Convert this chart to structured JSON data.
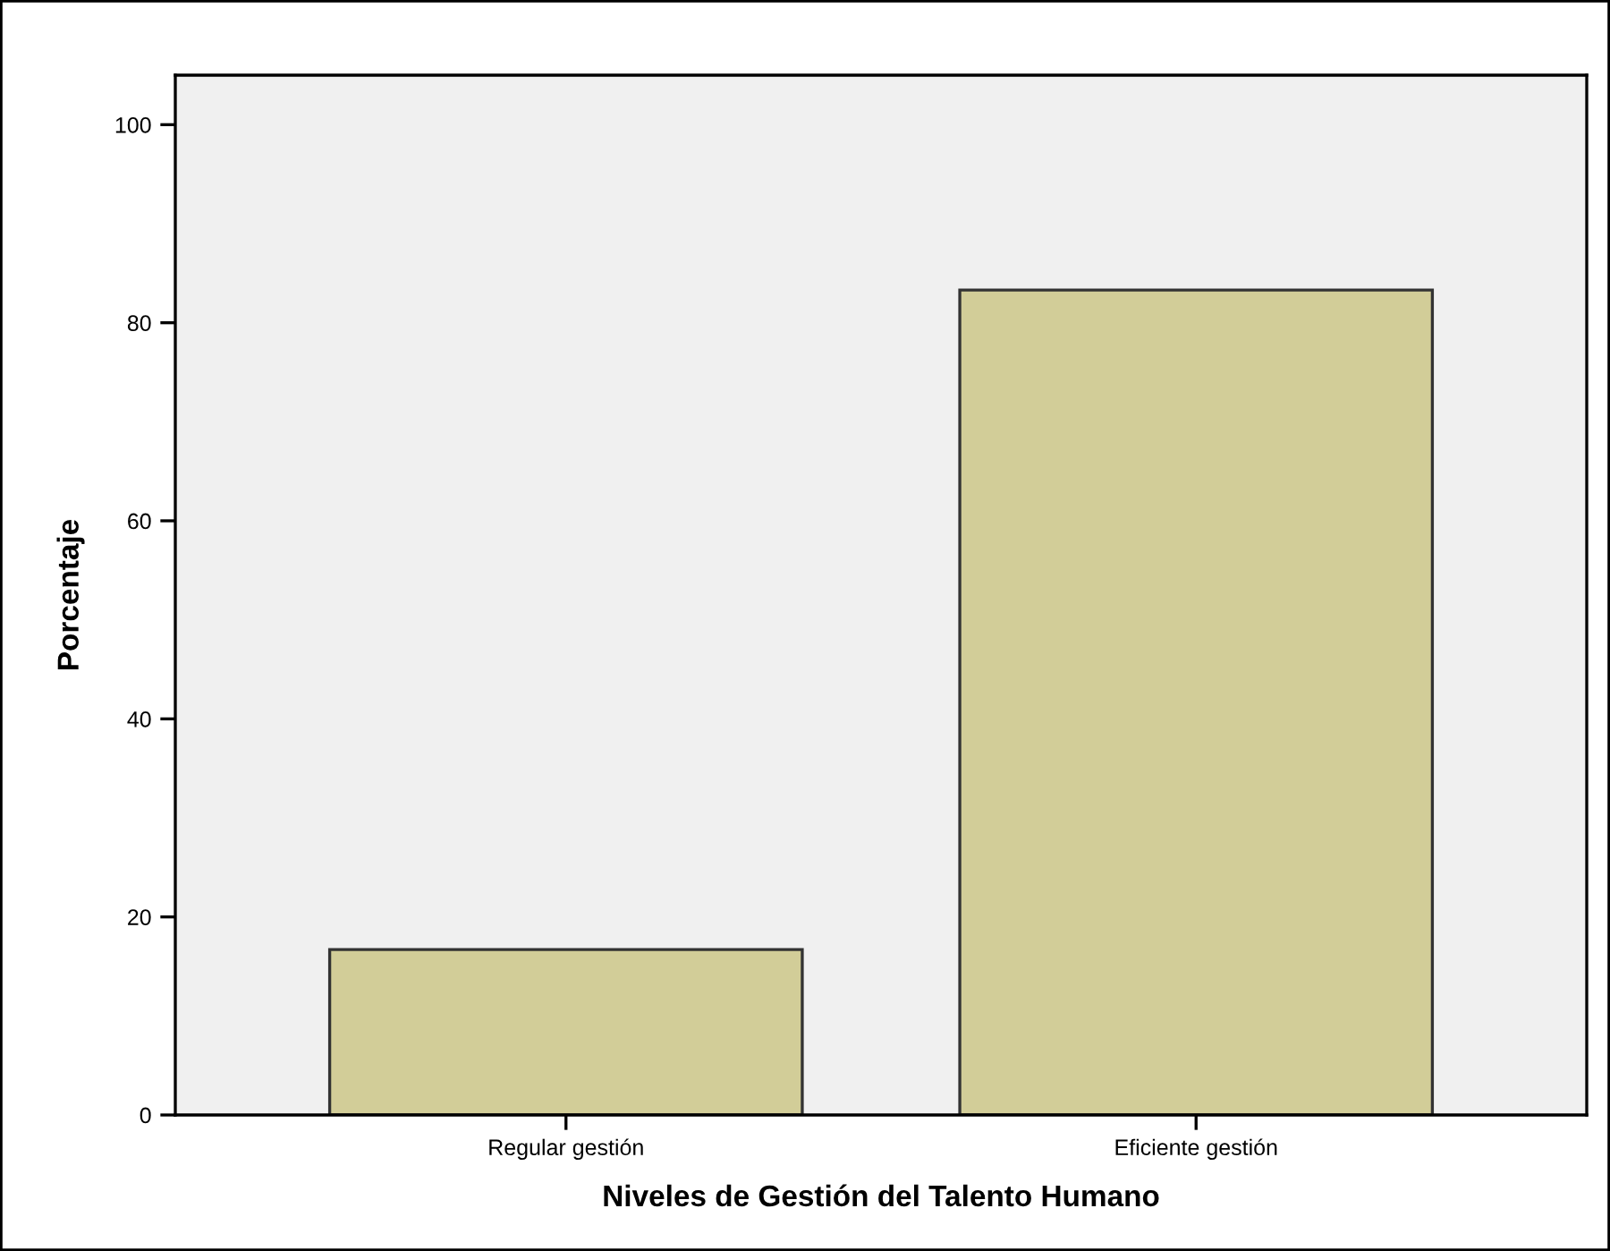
{
  "chart_data": {
    "type": "bar",
    "xlabel": "Niveles de Gestión del Talento Humano",
    "ylabel": "Porcentaje",
    "categories": [
      "Regular gestión",
      "Eficiente gestión"
    ],
    "values": [
      16.7,
      83.3
    ],
    "color": "#d2cd98",
    "ylim": [
      0,
      105
    ],
    "yticks": [
      0,
      20,
      40,
      60,
      80,
      100
    ],
    "grid": false,
    "legend": false
  }
}
